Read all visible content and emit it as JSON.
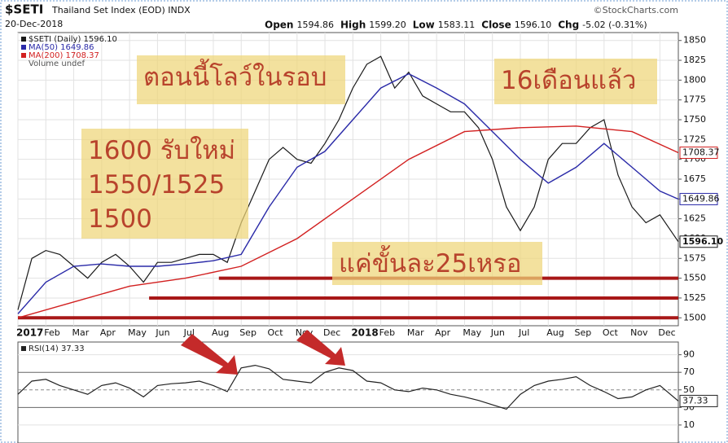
{
  "header": {
    "symbol": "$SETI",
    "name": "Thailand Set Index (EOD) INDX",
    "credit": "©StockCharts.com",
    "date": "20-Dec-2018",
    "quote": [
      {
        "label": "Open",
        "value": "1594.86"
      },
      {
        "label": "High",
        "value": "1599.20"
      },
      {
        "label": "Low",
        "value": "1583.11"
      },
      {
        "label": "Close",
        "value": "1596.10"
      },
      {
        "label": "Chg",
        "value": "-5.02 (-0.31%)"
      }
    ]
  },
  "annotations": {
    "notes": [
      "ตอนนี้โลว์ในรอบ",
      "16เดือนแล้ว",
      "1600 รับใหม่",
      "1550/1525",
      "1500",
      "แค่ขั้นละ25เหรอ"
    ],
    "support_lines": [
      {
        "value": 1550,
        "x_start": 7.2
      },
      {
        "value": 1525,
        "x_start": 4.7
      },
      {
        "value": 1500,
        "x_start": 0
      }
    ]
  },
  "chart_data": [
    {
      "type": "line",
      "legend_note": "Volume undef",
      "grid": true,
      "xlim": [
        0,
        23.66
      ],
      "ylim": [
        1490,
        1860
      ],
      "xticks": [
        {
          "value": 0,
          "label": "2017"
        },
        {
          "value": 1,
          "label": "Feb"
        },
        {
          "value": 2,
          "label": "Mar"
        },
        {
          "value": 3,
          "label": "Apr"
        },
        {
          "value": 4,
          "label": "May"
        },
        {
          "value": 5,
          "label": "Jun"
        },
        {
          "value": 6,
          "label": "Jul"
        },
        {
          "value": 7,
          "label": "Aug"
        },
        {
          "value": 8,
          "label": "Sep"
        },
        {
          "value": 9,
          "label": "Oct"
        },
        {
          "value": 10,
          "label": "Nov"
        },
        {
          "value": 11,
          "label": "Dec"
        },
        {
          "value": 12,
          "label": "2018"
        },
        {
          "value": 13,
          "label": "Feb"
        },
        {
          "value": 14,
          "label": "Mar"
        },
        {
          "value": 15,
          "label": "Apr"
        },
        {
          "value": 16,
          "label": "May"
        },
        {
          "value": 17,
          "label": "Jun"
        },
        {
          "value": 18,
          "label": "Jul"
        },
        {
          "value": 19,
          "label": "Aug"
        },
        {
          "value": 20,
          "label": "Sep"
        },
        {
          "value": 21,
          "label": "Oct"
        },
        {
          "value": 22,
          "label": "Nov"
        },
        {
          "value": 23,
          "label": "Dec"
        }
      ],
      "yticks": [
        1500,
        1525,
        1550,
        1575,
        1600,
        1625,
        1650,
        1675,
        1700,
        1725,
        1750,
        1775,
        1800,
        1825,
        1850
      ],
      "series": [
        {
          "name": "$SETI (Daily) 1596.10",
          "color": "#1a1a1a",
          "last_label": "1596.10",
          "x": [
            0,
            0.5,
            1,
            1.5,
            2,
            2.5,
            3,
            3.5,
            4,
            4.5,
            5,
            5.5,
            6,
            6.5,
            7,
            7.5,
            8,
            8.5,
            9,
            9.5,
            10,
            10.5,
            11,
            11.5,
            12,
            12.5,
            13,
            13.5,
            14,
            14.5,
            15,
            15.5,
            16,
            16.5,
            17,
            17.5,
            18,
            18.5,
            19,
            19.5,
            20,
            20.5,
            21,
            21.5,
            22,
            22.5,
            23,
            23.66
          ],
          "values": [
            1510,
            1575,
            1585,
            1580,
            1565,
            1550,
            1570,
            1580,
            1565,
            1545,
            1570,
            1570,
            1575,
            1580,
            1580,
            1570,
            1620,
            1660,
            1700,
            1715,
            1700,
            1695,
            1720,
            1750,
            1790,
            1820,
            1830,
            1790,
            1810,
            1780,
            1770,
            1760,
            1760,
            1740,
            1700,
            1640,
            1610,
            1640,
            1700,
            1720,
            1720,
            1740,
            1750,
            1680,
            1640,
            1620,
            1630,
            1596.1
          ]
        },
        {
          "name": "MA(50) 1649.86",
          "color": "#2a2aa8",
          "last_label": "1649.86",
          "x": [
            0,
            1,
            2,
            3,
            4,
            5,
            6,
            7,
            8,
            9,
            10,
            11,
            12,
            13,
            14,
            15,
            16,
            17,
            18,
            19,
            20,
            21,
            22,
            23,
            23.66
          ],
          "values": [
            1505,
            1545,
            1565,
            1568,
            1565,
            1565,
            1568,
            1572,
            1580,
            1640,
            1690,
            1710,
            1750,
            1790,
            1808,
            1790,
            1770,
            1735,
            1700,
            1670,
            1690,
            1720,
            1690,
            1660,
            1649.86
          ]
        },
        {
          "name": "MA(200) 1708.37",
          "color": "#d22020",
          "last_label": "1708.37",
          "x": [
            0,
            2,
            4,
            6,
            8,
            10,
            12,
            14,
            16,
            18,
            20,
            22,
            23.66
          ],
          "values": [
            1500,
            1520,
            1540,
            1550,
            1565,
            1600,
            1650,
            1700,
            1735,
            1740,
            1742,
            1735,
            1708.37
          ]
        }
      ]
    },
    {
      "type": "line",
      "xlim": [
        0,
        23.66
      ],
      "ylim": [
        -10.5,
        104.5
      ],
      "yticks": [
        10,
        30,
        50,
        70,
        90
      ],
      "series": [
        {
          "name": "RSI(14) 37.33",
          "color": "#222222",
          "last_label": "37.33",
          "x": [
            0,
            0.5,
            1,
            1.5,
            2,
            2.5,
            3,
            3.5,
            4,
            4.5,
            5,
            5.5,
            6,
            6.5,
            7,
            7.5,
            8,
            8.5,
            9,
            9.5,
            10,
            10.5,
            11,
            11.5,
            12,
            12.5,
            13,
            13.5,
            14,
            14.5,
            15,
            15.5,
            16,
            16.5,
            17,
            17.5,
            18,
            18.5,
            19,
            19.5,
            20,
            20.5,
            21,
            21.5,
            22,
            22.5,
            23,
            23.66
          ],
          "values": [
            45,
            60,
            62,
            55,
            50,
            45,
            55,
            58,
            52,
            42,
            55,
            57,
            58,
            60,
            55,
            48,
            75,
            78,
            74,
            62,
            60,
            58,
            70,
            75,
            72,
            60,
            58,
            50,
            48,
            52,
            50,
            45,
            42,
            38,
            33,
            28,
            45,
            55,
            60,
            62,
            65,
            55,
            48,
            40,
            42,
            50,
            55,
            37.33
          ]
        }
      ]
    }
  ]
}
